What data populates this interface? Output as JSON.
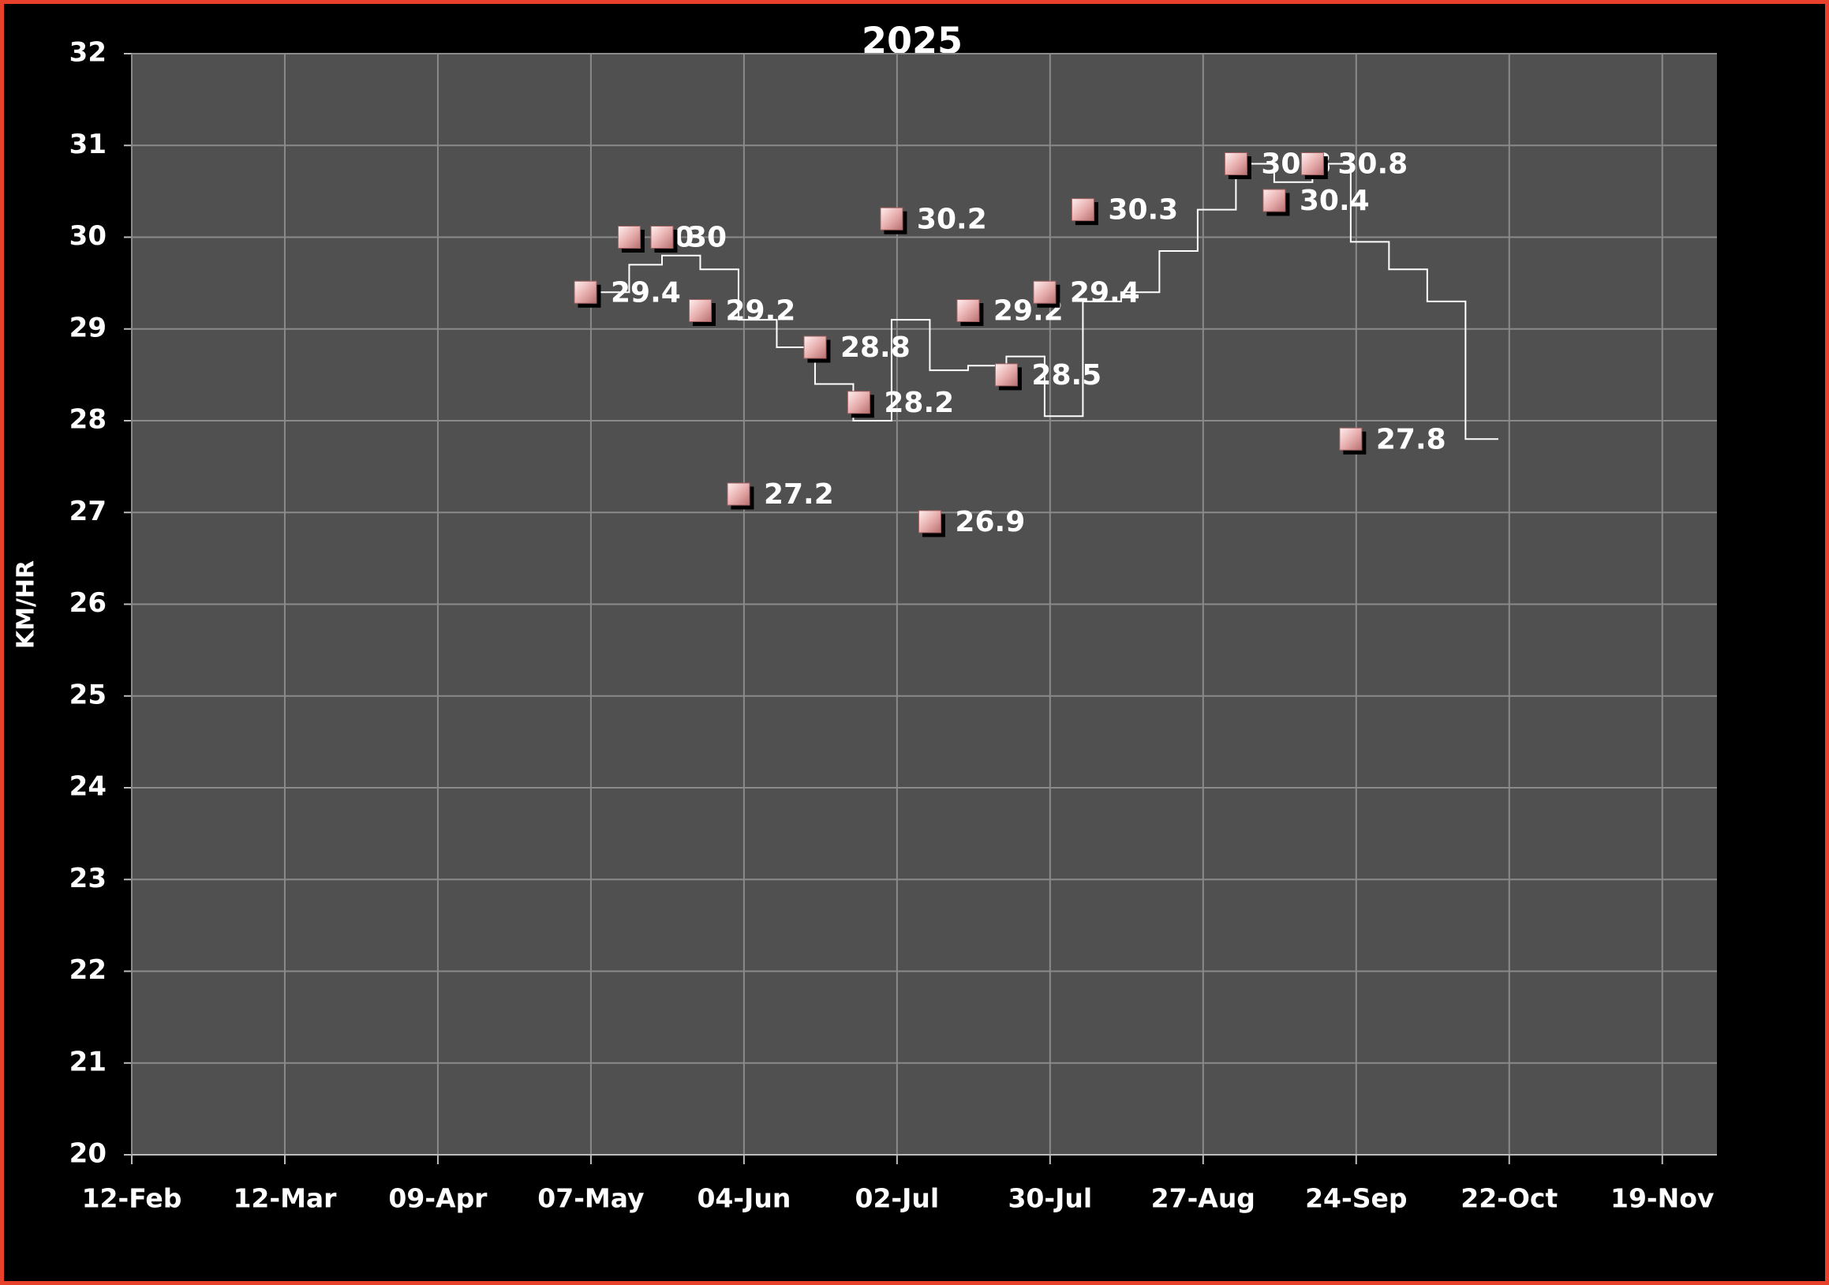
{
  "chart_data": {
    "type": "scatter",
    "title": "2025",
    "y_label": "KM/HR",
    "xlim": [
      43,
      333
    ],
    "xticks": [
      {
        "value": 43,
        "label": "12-Feb"
      },
      {
        "value": 71,
        "label": "12-Mar"
      },
      {
        "value": 99,
        "label": "09-Apr"
      },
      {
        "value": 127,
        "label": "07-May"
      },
      {
        "value": 155,
        "label": "04-Jun"
      },
      {
        "value": 183,
        "label": "02-Jul"
      },
      {
        "value": 211,
        "label": "30-Jul"
      },
      {
        "value": 239,
        "label": "27-Aug"
      },
      {
        "value": 267,
        "label": "24-Sep"
      },
      {
        "value": 295,
        "label": "22-Oct"
      },
      {
        "value": 323,
        "label": "19-Nov"
      }
    ],
    "ylim": [
      20,
      32
    ],
    "yticks": [
      20,
      21,
      22,
      23,
      24,
      25,
      26,
      27,
      28,
      29,
      30,
      31,
      32
    ],
    "grid": true,
    "series": [
      {
        "type": "scatter",
        "color": "#e9b0b0",
        "x": [
          126,
          134,
          140,
          147,
          154,
          168,
          176,
          182,
          189,
          196,
          203,
          210,
          217,
          245,
          252,
          259,
          266
        ],
        "values": [
          29.4,
          30,
          30,
          29.2,
          27.2,
          28.8,
          28.2,
          30.2,
          26.9,
          29.2,
          28.5,
          29.4,
          30.3,
          30.8,
          30.4,
          30.8,
          27.8
        ]
      },
      {
        "type": "step",
        "color": "#ffffff",
        "x": [
          128,
          134,
          140,
          147,
          154,
          161,
          168,
          175,
          182,
          189,
          196,
          203,
          210,
          217,
          224,
          231,
          238,
          245,
          252,
          259,
          266,
          273,
          280,
          287,
          293
        ],
        "values": [
          29.4,
          29.7,
          29.8,
          29.65,
          29.1,
          28.8,
          28.4,
          28.0,
          29.1,
          28.55,
          28.6,
          28.7,
          28.05,
          29.3,
          29.4,
          29.85,
          30.3,
          30.8,
          30.6,
          30.8,
          29.95,
          29.65,
          29.3,
          27.8,
          27.8
        ]
      }
    ]
  }
}
